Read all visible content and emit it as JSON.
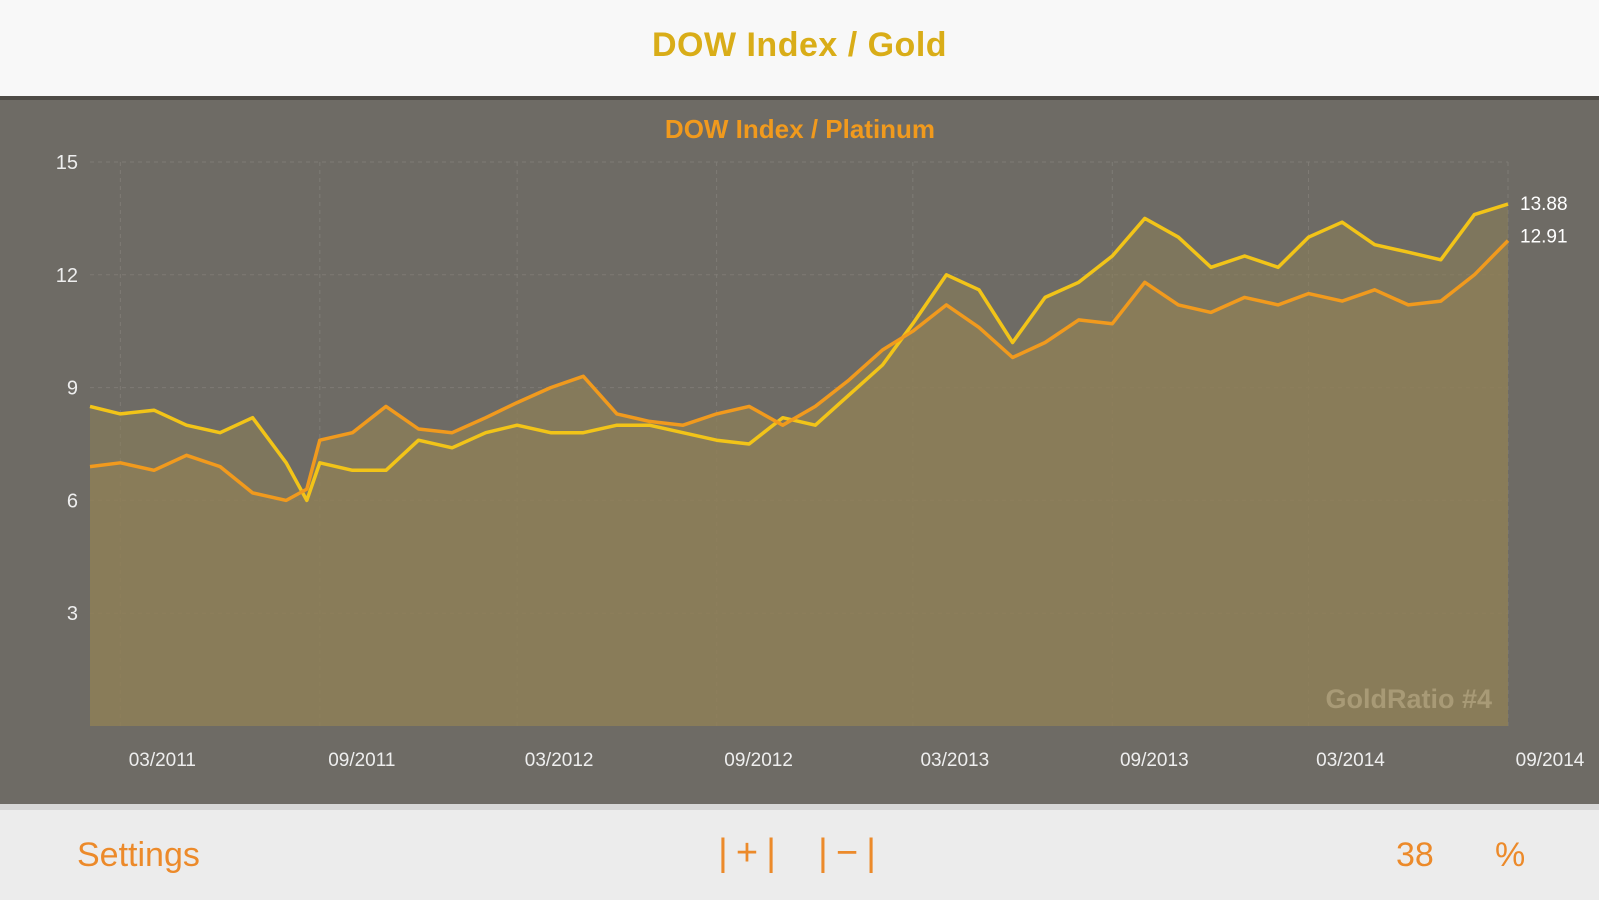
{
  "header": {
    "title": "DOW Index / Gold"
  },
  "footer": {
    "settings_label": "Settings",
    "zoom_in_label": "|+|",
    "zoom_out_label": "|−|",
    "percent_value": "38",
    "percent_label": "%"
  },
  "colors": {
    "gold_line": "#f2c418",
    "platinum_line": "#f19a1d",
    "fill": "#8d7f58",
    "panel_bg": "#6e6b65",
    "accent": "#ec8a2a"
  },
  "chart_data": {
    "type": "line",
    "title": "DOW Index / Platinum",
    "watermark": "GoldRatio #4",
    "ylim": [
      0,
      15
    ],
    "yticks": [
      "3",
      "6",
      "9",
      "12",
      "15"
    ],
    "xlim": [
      "2011-02-01",
      "2014-09-01"
    ],
    "xticks": [
      "03/2011",
      "09/2011",
      "03/2012",
      "09/2012",
      "03/2013",
      "09/2013",
      "03/2014",
      "09/2014"
    ],
    "grid": true,
    "series": [
      {
        "color": "#f2c418",
        "end_label": "13.88",
        "x": [
          "2011-02-01",
          "2011-03-01",
          "2011-04-01",
          "2011-05-01",
          "2011-06-01",
          "2011-07-01",
          "2011-08-01",
          "2011-08-20",
          "2011-09-01",
          "2011-10-01",
          "2011-11-01",
          "2011-12-01",
          "2012-01-01",
          "2012-02-01",
          "2012-03-01",
          "2012-04-01",
          "2012-05-01",
          "2012-06-01",
          "2012-07-01",
          "2012-08-01",
          "2012-09-01",
          "2012-10-01",
          "2012-11-01",
          "2012-12-01",
          "2013-01-01",
          "2013-02-01",
          "2013-03-01",
          "2013-04-01",
          "2013-05-01",
          "2013-06-01",
          "2013-07-01",
          "2013-08-01",
          "2013-09-01",
          "2013-10-01",
          "2013-11-01",
          "2013-12-01",
          "2014-01-01",
          "2014-02-01",
          "2014-03-01",
          "2014-04-01",
          "2014-05-01",
          "2014-06-01",
          "2014-07-01",
          "2014-08-01",
          "2014-09-01"
        ],
        "values": [
          8.5,
          8.3,
          8.4,
          8.0,
          7.8,
          8.2,
          7.0,
          6.0,
          7.0,
          6.8,
          6.8,
          7.6,
          7.4,
          7.8,
          8.0,
          7.8,
          7.8,
          8.0,
          8.0,
          7.8,
          7.6,
          7.5,
          8.2,
          8.0,
          8.8,
          9.6,
          10.7,
          12.0,
          11.6,
          10.2,
          11.4,
          11.8,
          12.5,
          13.5,
          13.0,
          12.2,
          12.5,
          12.2,
          13.0,
          13.4,
          12.8,
          12.6,
          12.4,
          13.6,
          13.88
        ]
      },
      {
        "color": "#f19a1d",
        "end_label": "12.91",
        "x": [
          "2011-02-01",
          "2011-03-01",
          "2011-04-01",
          "2011-05-01",
          "2011-06-01",
          "2011-07-01",
          "2011-08-01",
          "2011-08-20",
          "2011-09-01",
          "2011-10-01",
          "2011-11-01",
          "2011-12-01",
          "2012-01-01",
          "2012-02-01",
          "2012-03-01",
          "2012-04-01",
          "2012-05-01",
          "2012-06-01",
          "2012-07-01",
          "2012-08-01",
          "2012-09-01",
          "2012-10-01",
          "2012-11-01",
          "2012-12-01",
          "2013-01-01",
          "2013-02-01",
          "2013-03-01",
          "2013-04-01",
          "2013-05-01",
          "2013-06-01",
          "2013-07-01",
          "2013-08-01",
          "2013-09-01",
          "2013-10-01",
          "2013-11-01",
          "2013-12-01",
          "2014-01-01",
          "2014-02-01",
          "2014-03-01",
          "2014-04-01",
          "2014-05-01",
          "2014-06-01",
          "2014-07-01",
          "2014-08-01",
          "2014-09-01"
        ],
        "values": [
          6.9,
          7.0,
          6.8,
          7.2,
          6.9,
          6.2,
          6.0,
          6.3,
          7.6,
          7.8,
          8.5,
          7.9,
          7.8,
          8.2,
          8.6,
          9.0,
          9.3,
          8.3,
          8.1,
          8.0,
          8.3,
          8.5,
          8.0,
          8.5,
          9.2,
          10.0,
          10.5,
          11.2,
          10.6,
          9.8,
          10.2,
          10.8,
          10.7,
          11.8,
          11.2,
          11.0,
          11.4,
          11.2,
          11.5,
          11.3,
          11.6,
          11.2,
          11.3,
          12.0,
          12.91
        ]
      }
    ]
  }
}
